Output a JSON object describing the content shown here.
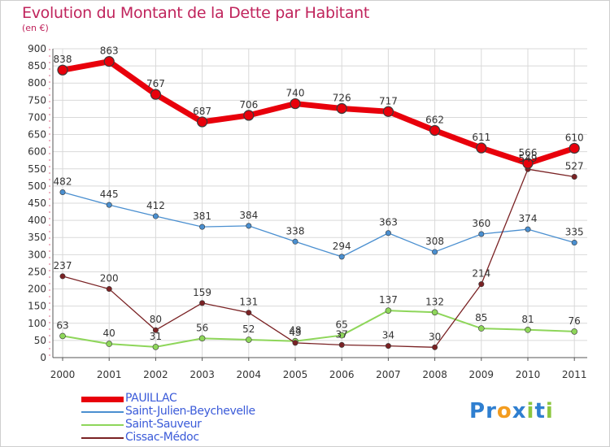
{
  "title": "Evolution du Montant de la Dette par Habitant",
  "subtitle": "(en €)",
  "logo": {
    "text": "Proxiti",
    "letters": [
      "P",
      "r",
      "o",
      "x",
      "i",
      "t",
      "i"
    ],
    "colors": [
      "#2f7fd0",
      "#2f7fd0",
      "#f39c1f",
      "#2f7fd0",
      "#8cc63f",
      "#2f7fd0",
      "#8cc63f"
    ]
  },
  "chart_data": {
    "type": "line",
    "title": "Evolution du Montant de la Dette par Habitant",
    "ylabel": "(en €)",
    "x": [
      "2000",
      "2001",
      "2002",
      "2003",
      "2004",
      "2005",
      "2006",
      "2007",
      "2008",
      "2009",
      "2010",
      "2011"
    ],
    "ylim": [
      0,
      900
    ],
    "yticks": [
      0,
      50,
      100,
      150,
      200,
      250,
      300,
      350,
      400,
      450,
      500,
      550,
      600,
      650,
      700,
      750,
      800,
      850,
      900
    ],
    "grid": true,
    "legend": "bottom-left",
    "series": [
      {
        "name": "PAUILLAC",
        "color": "#e8000b",
        "values": [
          838,
          863,
          767,
          687,
          706,
          740,
          726,
          717,
          662,
          611,
          566,
          610
        ]
      },
      {
        "name": "Saint-Julien-Beychevelle",
        "color": "#4a8fd0",
        "values": [
          482,
          445,
          412,
          381,
          384,
          338,
          294,
          363,
          308,
          360,
          374,
          335
        ]
      },
      {
        "name": "Saint-Sauveur",
        "color": "#8ed65a",
        "values": [
          63,
          40,
          31,
          56,
          52,
          48,
          65,
          137,
          132,
          85,
          81,
          76
        ]
      },
      {
        "name": "Cissac-Médoc",
        "color": "#7a2224",
        "values": [
          237,
          200,
          80,
          159,
          131,
          43,
          37,
          34,
          30,
          214,
          549,
          527
        ]
      }
    ]
  }
}
